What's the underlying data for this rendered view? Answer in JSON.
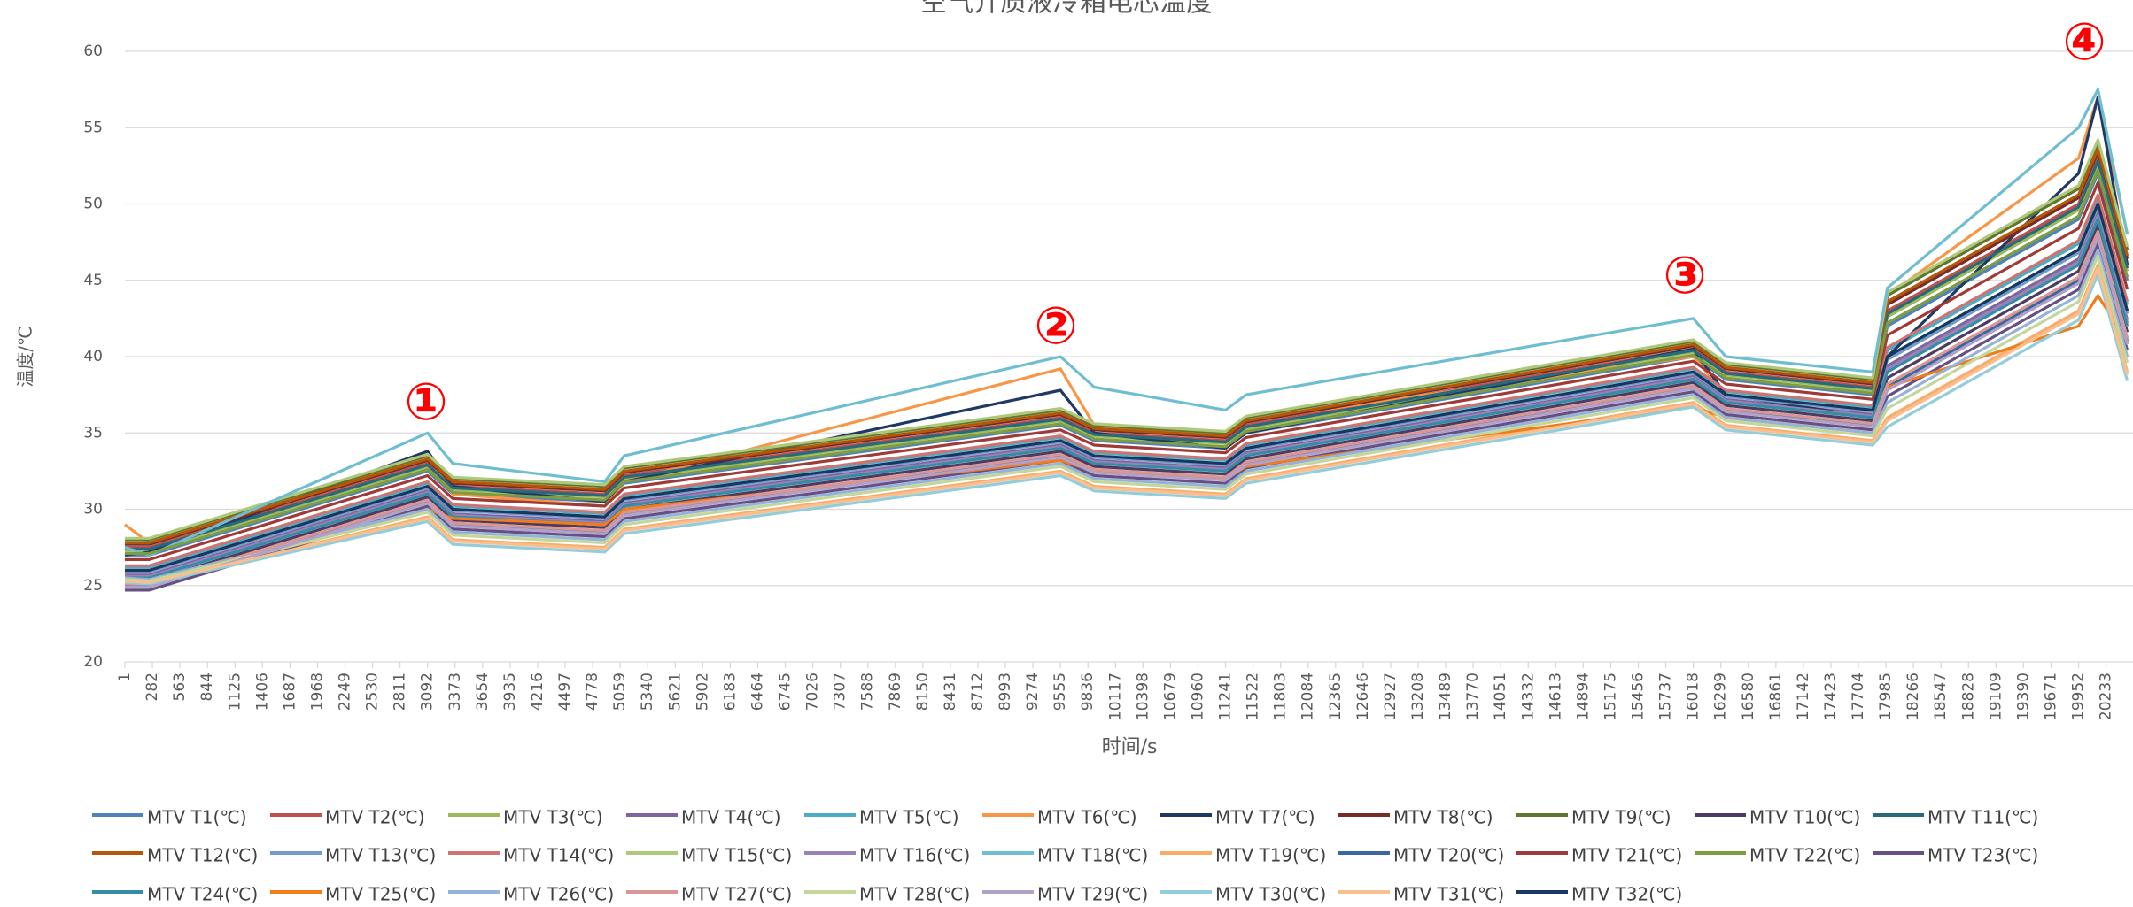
{
  "chart_data": {
    "type": "line",
    "title": "空气介质液冷箱电芯温度",
    "x_label": "时间/s",
    "y_label": "温度/℃",
    "annotations": [
      "①",
      "②",
      "③",
      "④"
    ],
    "xlim": [
      1,
      20508
    ],
    "ylim": [
      20,
      60
    ],
    "yticks": [
      20,
      25,
      30,
      35,
      40,
      45,
      50,
      55,
      60
    ],
    "xticks": [
      1,
      282,
      563,
      844,
      1125,
      1406,
      1687,
      1968,
      2249,
      2530,
      2811,
      3092,
      3373,
      3654,
      3935,
      4216,
      4497,
      4778,
      5059,
      5340,
      5621,
      5902,
      6183,
      6464,
      6745,
      7026,
      7307,
      7588,
      7869,
      8150,
      8431,
      8712,
      8993,
      9274,
      9555,
      9836,
      10117,
      10398,
      10679,
      10960,
      11241,
      11522,
      11803,
      12084,
      12365,
      12646,
      12927,
      13208,
      13489,
      13770,
      14051,
      14332,
      14613,
      14894,
      15175,
      15456,
      15737,
      16018,
      16299,
      16580,
      16861,
      17142,
      17423,
      17704,
      17985,
      18266,
      18547,
      18828,
      19109,
      19390,
      19671,
      19952,
      20233
    ],
    "grid": true,
    "legend": "bottom",
    "x": [
      1,
      250,
      3092,
      3350,
      4900,
      5100,
      9555,
      9900,
      11241,
      11450,
      16018,
      16350,
      17850,
      18000,
      19952,
      20150,
      20450
    ],
    "series": [
      {
        "name": "MTV T1(℃)",
        "color": "#4f81bd",
        "values": [
          27,
          27,
          32.5,
          31,
          30.5,
          31.7,
          35.5,
          34.5,
          34,
          35,
          40,
          38.5,
          37.5,
          42,
          49,
          52,
          45
        ]
      },
      {
        "name": "MTV T2(℃)",
        "color": "#c0504d",
        "values": [
          27.5,
          27.5,
          33,
          31.5,
          31,
          32.2,
          36,
          35,
          34.5,
          35.5,
          40.5,
          39,
          38,
          43,
          50,
          53,
          46
        ]
      },
      {
        "name": "MTV T3(℃)",
        "color": "#9bbb59",
        "values": [
          27.3,
          27.3,
          32.8,
          31.3,
          30.8,
          32,
          35.8,
          34.8,
          34.3,
          35.3,
          40.3,
          38.8,
          37.8,
          42.6,
          49.6,
          52.6,
          45.6
        ]
      },
      {
        "name": "MTV T4(℃)",
        "color": "#8064a2",
        "values": [
          25.7,
          25.7,
          31.2,
          29.7,
          29.2,
          30.4,
          34.2,
          33.2,
          32.7,
          33.7,
          38.7,
          37.2,
          36.2,
          39.4,
          46.4,
          49.4,
          42.4
        ]
      },
      {
        "name": "MTV T5(℃)",
        "color": "#4bacc6",
        "values": [
          26.2,
          26.2,
          31.7,
          30.2,
          29.7,
          30.9,
          34.7,
          33.7,
          33.2,
          34.2,
          39.2,
          37.7,
          36.7,
          40.4,
          47.4,
          50.4,
          43.4
        ]
      },
      {
        "name": "MTV T6(℃)",
        "color": "#f79646",
        "values": [
          29,
          27.8,
          33.5,
          31,
          30.2,
          31.8,
          39.2,
          35.5,
          34.8,
          35.8,
          40,
          37.5,
          36,
          44,
          53,
          57,
          48
        ]
      },
      {
        "name": "MTV T7(℃)",
        "color": "#1f3864",
        "values": [
          27,
          27.2,
          33.8,
          31.5,
          30.5,
          31.8,
          37.8,
          35,
          34,
          35,
          40.5,
          37.5,
          36,
          40,
          52,
          57,
          46
        ]
      },
      {
        "name": "MTV T8(℃)",
        "color": "#772c2a",
        "values": [
          27.7,
          27.7,
          33.2,
          31.7,
          31.2,
          32.4,
          36.2,
          35.2,
          34.7,
          35.7,
          40.7,
          39.2,
          38.2,
          43.4,
          50.4,
          53.4,
          46.4
        ]
      },
      {
        "name": "MTV T9(℃)",
        "color": "#5f7530",
        "values": [
          28,
          28,
          33.5,
          32,
          31.5,
          32.7,
          36.5,
          35.5,
          35,
          36,
          41,
          39.5,
          38.5,
          44,
          51,
          54,
          47
        ]
      },
      {
        "name": "MTV T10(℃)",
        "color": "#4d3b62",
        "values": [
          25.3,
          25.3,
          30.8,
          29.3,
          28.8,
          30,
          33.8,
          32.8,
          32.3,
          33.3,
          38.3,
          36.8,
          35.8,
          38.6,
          45.6,
          48.6,
          41.6
        ]
      },
      {
        "name": "MTV T11(℃)",
        "color": "#276a7c",
        "values": [
          27.4,
          27.4,
          32.9,
          31.4,
          30.9,
          32.1,
          35.9,
          34.9,
          34.4,
          35.4,
          40.4,
          38.9,
          37.9,
          42.8,
          49.8,
          52.8,
          45.8
        ]
      },
      {
        "name": "MTV T12(℃)",
        "color": "#b65708",
        "values": [
          27.8,
          27.8,
          33.3,
          31.8,
          31.3,
          32.5,
          36.3,
          35.3,
          34.8,
          35.8,
          40.8,
          39.3,
          38.3,
          43.6,
          50.6,
          53.6,
          46.6
        ]
      },
      {
        "name": "MTV T13(℃)",
        "color": "#729aca",
        "values": [
          25.9,
          25.9,
          31.4,
          29.9,
          29.4,
          30.6,
          34.4,
          33.4,
          32.9,
          33.9,
          38.9,
          37.4,
          36.4,
          39.8,
          46.8,
          49.8,
          42.8
        ]
      },
      {
        "name": "MTV T14(℃)",
        "color": "#cd7371",
        "values": [
          26.3,
          26.3,
          31.8,
          30.3,
          29.8,
          31,
          34.8,
          33.8,
          33.3,
          34.3,
          39.3,
          37.8,
          36.8,
          40.6,
          47.6,
          50.6,
          43.6
        ]
      },
      {
        "name": "MTV T15(℃)",
        "color": "#afc97a",
        "values": [
          28.1,
          28.1,
          33.6,
          32.1,
          31.6,
          32.8,
          36.6,
          35.6,
          35.1,
          36.1,
          41.1,
          39.6,
          38.6,
          44.2,
          51.2,
          54.2,
          47.2
        ]
      },
      {
        "name": "MTV T16(℃)",
        "color": "#9983b5",
        "values": [
          25.6,
          25.6,
          31.1,
          29.6,
          29.1,
          30.3,
          34.1,
          33.1,
          32.6,
          33.6,
          38.6,
          37.1,
          36.1,
          39.2,
          46.2,
          49.2,
          42.2
        ]
      },
      {
        "name": "MTV T18(℃)",
        "color": "#6fbdd1",
        "values": [
          27.5,
          27,
          35,
          33,
          31.8,
          33.5,
          40,
          38,
          36.5,
          37.5,
          42.5,
          40,
          39,
          44.5,
          55,
          57.5,
          48
        ]
      },
      {
        "name": "MTV T19(℃)",
        "color": "#f9ab6b",
        "values": [
          25.3,
          25.2,
          29.5,
          28,
          27.5,
          28.7,
          32.5,
          31.5,
          31,
          32,
          37,
          35.5,
          34.5,
          36,
          43,
          46,
          39
        ]
      },
      {
        "name": "MTV T20(℃)",
        "color": "#3a679c",
        "values": [
          25,
          25,
          30.5,
          29,
          28.5,
          29.7,
          33.5,
          32.5,
          32,
          33,
          38,
          36.5,
          35.5,
          38,
          45,
          48,
          41
        ]
      },
      {
        "name": "MTV T21(℃)",
        "color": "#9e3b38",
        "values": [
          26.7,
          26.7,
          32.2,
          30.7,
          30.2,
          31.4,
          35.2,
          34.2,
          33.7,
          34.7,
          39.7,
          38.2,
          37.2,
          41.4,
          48.4,
          51.4,
          44.4
        ]
      },
      {
        "name": "MTV T22(℃)",
        "color": "#7e9c40",
        "values": [
          27.1,
          27.1,
          32.6,
          31.1,
          30.6,
          31.8,
          35.6,
          34.6,
          34.1,
          35.1,
          40.1,
          38.6,
          37.6,
          42.2,
          49.2,
          52.2,
          45.2
        ]
      },
      {
        "name": "MTV T23(℃)",
        "color": "#664f83",
        "values": [
          24.7,
          24.7,
          30.2,
          28.7,
          28.2,
          29.4,
          33.2,
          32.2,
          31.7,
          32.7,
          37.7,
          36.2,
          35.2,
          37.4,
          44.4,
          47.4,
          40.4
        ]
      },
      {
        "name": "MTV T24(℃)",
        "color": "#348da5",
        "values": [
          25.5,
          25.5,
          31,
          29.5,
          29,
          30.2,
          34,
          33,
          32.5,
          33.5,
          38.5,
          37,
          36,
          39,
          46,
          49,
          42
        ]
      },
      {
        "name": "MTV T25(℃)",
        "color": "#f07d1c",
        "values": [
          25.3,
          25.3,
          30,
          29.4,
          29,
          30,
          33.2,
          32.5,
          32,
          32.8,
          36.7,
          36,
          35,
          38,
          42,
          44,
          41
        ]
      },
      {
        "name": "MTV T26(℃)",
        "color": "#95b3d7",
        "values": [
          25.5,
          25.4,
          30,
          28.5,
          28,
          29.2,
          33,
          32,
          31.5,
          32.5,
          37.5,
          36,
          35,
          37,
          44,
          47,
          40
        ]
      },
      {
        "name": "MTV T27(℃)",
        "color": "#da9694",
        "values": [
          25.1,
          25.1,
          30.6,
          29.1,
          28.6,
          29.8,
          33.6,
          32.6,
          32.1,
          33.1,
          38.1,
          36.6,
          35.6,
          38.2,
          45.2,
          48.2,
          41.2
        ]
      },
      {
        "name": "MTV T28(℃)",
        "color": "#c4d79b",
        "values": [
          25.4,
          25.3,
          29.8,
          28.3,
          27.8,
          29,
          32.8,
          31.8,
          31.3,
          32.3,
          37.3,
          35.8,
          34.8,
          36.6,
          43.6,
          46.6,
          39.6
        ]
      },
      {
        "name": "MTV T29(℃)",
        "color": "#b1a0c7",
        "values": [
          24.9,
          24.9,
          30.4,
          28.9,
          28.4,
          29.6,
          33.4,
          32.4,
          31.9,
          32.9,
          37.9,
          36.4,
          35.4,
          37.8,
          44.8,
          47.8,
          40.8
        ]
      },
      {
        "name": "MTV T30(℃)",
        "color": "#92cddc",
        "values": [
          25.2,
          25.1,
          29.2,
          27.7,
          27.2,
          28.4,
          32.2,
          31.2,
          30.7,
          31.7,
          36.7,
          35.2,
          34.2,
          35.4,
          42.4,
          45.4,
          38.4
        ]
      },
      {
        "name": "MTV T31(℃)",
        "color": "#fabf8f",
        "values": [
          25.3,
          25.2,
          29.4,
          27.9,
          27.4,
          28.6,
          32.4,
          31.4,
          30.9,
          31.9,
          36.9,
          35.4,
          34.4,
          35.8,
          42.8,
          45.8,
          38.8
        ]
      },
      {
        "name": "MTV T32(℃)",
        "color": "#17375e",
        "values": [
          26,
          26,
          31.5,
          30,
          29.5,
          30.7,
          34.5,
          33.5,
          33,
          34,
          39,
          37.5,
          36.5,
          40,
          47,
          50,
          43
        ]
      }
    ]
  }
}
